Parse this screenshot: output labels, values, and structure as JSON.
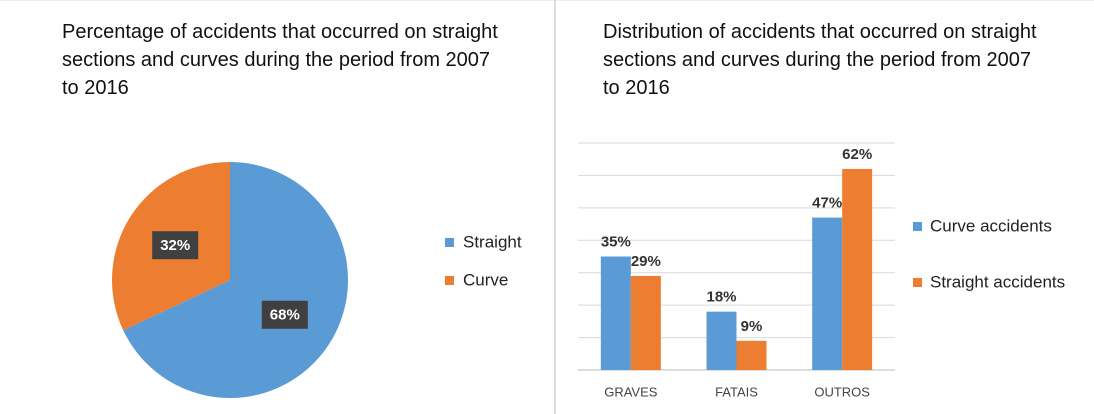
{
  "chart_data": [
    {
      "type": "pie",
      "title": "Percentage of accidents that occurred on straight sections and curves during the period from 2007 to 2016",
      "categories": [
        "Straight",
        "Curve"
      ],
      "values": [
        68,
        32
      ],
      "value_labels": [
        "68%",
        "32%"
      ],
      "colors": [
        "#5b9bd5",
        "#ed7d31"
      ],
      "legend": "right"
    },
    {
      "type": "bar",
      "title": "Distribution of accidents that occurred on straight sections and curves during the period from 2007 to 2016",
      "categories": [
        "GRAVES",
        "FATAIS",
        "OUTROS"
      ],
      "series": [
        {
          "name": "Curve accidents",
          "color": "#5b9bd5",
          "values": [
            35,
            18,
            47
          ],
          "value_labels": [
            "35%",
            "18%",
            "47%"
          ]
        },
        {
          "name": "Straight accidents",
          "color": "#ed7d31",
          "values": [
            29,
            9,
            62
          ],
          "value_labels": [
            "29%",
            "9%",
            "62%"
          ]
        }
      ],
      "ylim": [
        0,
        70
      ],
      "yticks": [
        0,
        10,
        20,
        30,
        40,
        50,
        60,
        70
      ],
      "grid": true,
      "legend": "right"
    }
  ]
}
